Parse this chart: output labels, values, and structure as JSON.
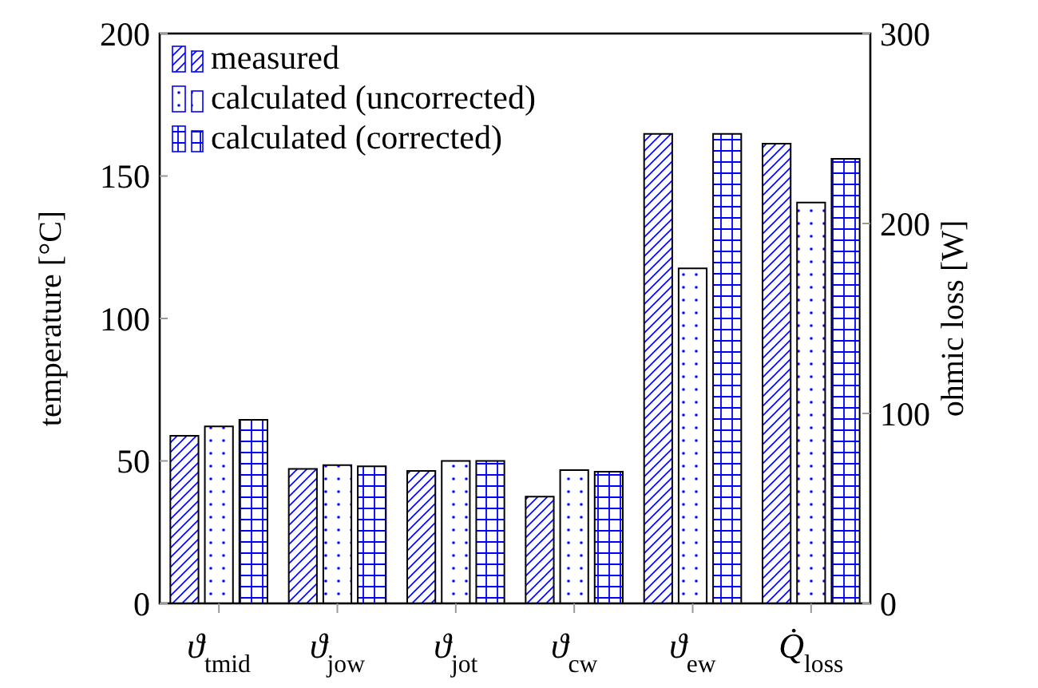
{
  "chart_data": {
    "type": "bar",
    "categories": [
      "ϑ$_{tmid}$",
      "ϑ$_{jow}$",
      "ϑ$_{jot}$",
      "ϑ$_{cw}$",
      "ϑ$_{ew}$",
      "Q̇$_{loss}$"
    ],
    "ylabel": "temperature [°C]",
    "y2label": "ohmic loss [W]",
    "ylim": [
      0,
      200
    ],
    "yticks": [
      0,
      50,
      100,
      150,
      200
    ],
    "y2lim": [
      0,
      300
    ],
    "y2ticks": [
      0,
      100,
      200,
      300
    ],
    "legend": "top left",
    "grid": false,
    "series": [
      {
        "name": "measured",
        "color": "#0000ff",
        "values": [
          58.8,
          47.2,
          46.5,
          37.5,
          164.8,
          null
        ]
      },
      {
        "name": "calculated (uncorrected)",
        "color": "#0000ff",
        "values": [
          62.1,
          48.5,
          50,
          46.8,
          117.6,
          null
        ]
      },
      {
        "name": "calculated (corrected)",
        "color": "#0000ff",
        "values": [
          64.4,
          48.1,
          50,
          46.2,
          164.8,
          null
        ]
      },
      {
        "color": "#0000ff",
        "axis": "y2",
        "values": [
          null,
          null,
          null,
          null,
          null,
          242
        ]
      },
      {
        "color": "#0000ff",
        "axis": "y2",
        "values": [
          null,
          null,
          null,
          null,
          null,
          211
        ]
      },
      {
        "color": "#0000ff",
        "axis": "y2",
        "values": [
          null,
          null,
          null,
          null,
          null,
          234
        ]
      }
    ]
  }
}
